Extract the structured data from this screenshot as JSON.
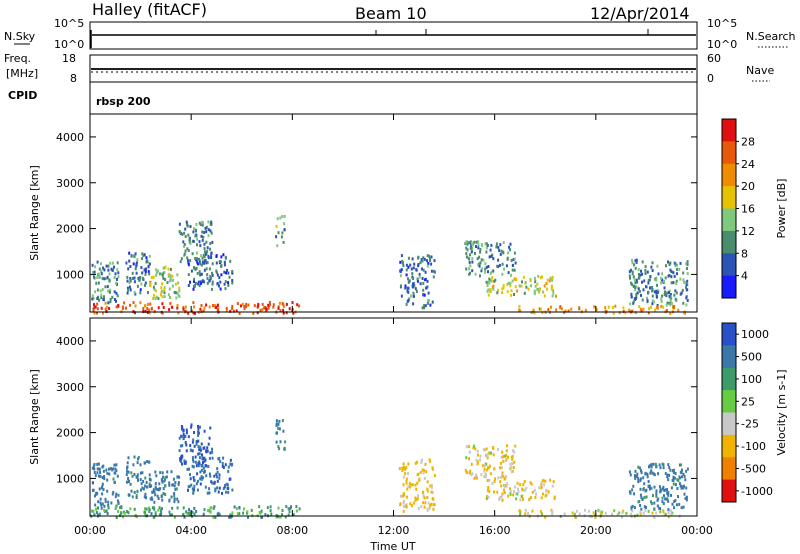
{
  "header": {
    "station": "Halley (fitACF)",
    "beam": "Beam 10",
    "date": "12/Apr/2014"
  },
  "strip_nsky": {
    "left_label": "N.Sky",
    "right_label": "N.Search",
    "ticks_left": [
      "10^5",
      "10^0"
    ],
    "ticks_right": [
      "10^5",
      "10^0"
    ]
  },
  "strip_freq": {
    "left_label_1": "Freq.",
    "left_label_2": "[MHz]",
    "right_label": "Nave",
    "ticks_left": [
      "18",
      "8"
    ],
    "ticks_right": [
      "60",
      "0"
    ]
  },
  "strip_cpid": {
    "left_label": "CPID",
    "program": "rbsp 200"
  },
  "chart_data": [
    {
      "type": "heatmap",
      "title": "Power",
      "ylabel": "Slant Range [km]",
      "xlabel": "Time UT",
      "x_ticks": [
        "00:00",
        "04:00",
        "08:00",
        "12:00",
        "16:00",
        "20:00",
        "00:00"
      ],
      "xlim_hours": [
        0,
        24
      ],
      "y_ticks": [
        1000,
        2000,
        3000,
        4000
      ],
      "ylim": [
        180,
        4500
      ],
      "colorbar": {
        "label": "Power [dB]",
        "range": [
          0,
          32
        ],
        "ticks": [
          "4",
          "8",
          "12",
          "16",
          "20",
          "24",
          "28"
        ],
        "colors": [
          "#1a1aff",
          "#2a55b5",
          "#4a8c6e",
          "#7fc97f",
          "#e6c200",
          "#f08c00",
          "#e85a0a",
          "#e01010"
        ]
      },
      "scatter_regions": [
        {
          "t0": 0.05,
          "t1": 1.1,
          "r0": 380,
          "r1": 1350,
          "v": 10
        },
        {
          "t0": 1.4,
          "t1": 2.4,
          "r0": 600,
          "r1": 1500,
          "v": 8
        },
        {
          "t0": 2.3,
          "t1": 3.5,
          "r0": 500,
          "r1": 1200,
          "v": 14
        },
        {
          "t0": 3.5,
          "t1": 4.8,
          "r0": 1300,
          "r1": 2200,
          "v": 9
        },
        {
          "t0": 3.8,
          "t1": 5.6,
          "r0": 700,
          "r1": 1500,
          "v": 7
        },
        {
          "t0": 7.3,
          "t1": 7.7,
          "r0": 1650,
          "r1": 2300,
          "v": 12
        },
        {
          "t0": 12.2,
          "t1": 13.6,
          "r0": 300,
          "r1": 1450,
          "v": 8
        },
        {
          "t0": 14.8,
          "t1": 16.8,
          "r0": 1000,
          "r1": 1750,
          "v": 10
        },
        {
          "t0": 15.6,
          "t1": 18.4,
          "r0": 550,
          "r1": 1000,
          "v": 16
        },
        {
          "t0": 21.3,
          "t1": 23.6,
          "r0": 350,
          "r1": 1350,
          "v": 9
        }
      ],
      "ground_scatter": [
        {
          "t0": 0.0,
          "t1": 8.3,
          "r0": 180,
          "r1": 420,
          "v": 27
        },
        {
          "t0": 16.8,
          "t1": 23.5,
          "r0": 180,
          "r1": 340,
          "v": 22
        }
      ]
    },
    {
      "type": "heatmap",
      "title": "Velocity",
      "ylabel": "Slant Range [km]",
      "xlabel": "Time UT",
      "x_ticks": [
        "00:00",
        "04:00",
        "08:00",
        "12:00",
        "16:00",
        "20:00",
        "00:00"
      ],
      "xlim_hours": [
        0,
        24
      ],
      "y_ticks": [
        1000,
        2000,
        3000,
        4000
      ],
      "ylim": [
        180,
        4500
      ],
      "colorbar": {
        "label": "Velocity [m s-1]",
        "ticks": [
          "1000",
          "500",
          "100",
          "25",
          "-25",
          "-100",
          "-500",
          "-1000"
        ],
        "colors": [
          "#2850c8",
          "#3a78aa",
          "#3d9a6a",
          "#66cc44",
          "#c8c8c8",
          "#f0b400",
          "#f08000",
          "#e01010"
        ]
      },
      "scatter_regions": [
        {
          "t0": 0.05,
          "t1": 1.1,
          "r0": 380,
          "r1": 1350,
          "v": 300
        },
        {
          "t0": 1.4,
          "t1": 2.4,
          "r0": 600,
          "r1": 1500,
          "v": 250
        },
        {
          "t0": 2.3,
          "t1": 3.5,
          "r0": 500,
          "r1": 1200,
          "v": 200
        },
        {
          "t0": 3.5,
          "t1": 4.8,
          "r0": 1300,
          "r1": 2200,
          "v": 700
        },
        {
          "t0": 3.8,
          "t1": 5.6,
          "r0": 700,
          "r1": 1500,
          "v": 400
        },
        {
          "t0": 7.3,
          "t1": 7.7,
          "r0": 1650,
          "r1": 2300,
          "v": 150
        },
        {
          "t0": 12.2,
          "t1": 13.6,
          "r0": 300,
          "r1": 1450,
          "v": -150
        },
        {
          "t0": 14.8,
          "t1": 16.8,
          "r0": 1000,
          "r1": 1750,
          "v": -120
        },
        {
          "t0": 15.6,
          "t1": 18.4,
          "r0": 550,
          "r1": 1000,
          "v": -100
        },
        {
          "t0": 21.3,
          "t1": 23.6,
          "r0": 350,
          "r1": 1350,
          "v": 200
        }
      ],
      "ground_scatter": [
        {
          "t0": 0.0,
          "t1": 8.3,
          "r0": 180,
          "r1": 420,
          "v": 60
        },
        {
          "t0": 16.8,
          "t1": 23.5,
          "r0": 180,
          "r1": 340,
          "v": -60
        }
      ]
    }
  ]
}
